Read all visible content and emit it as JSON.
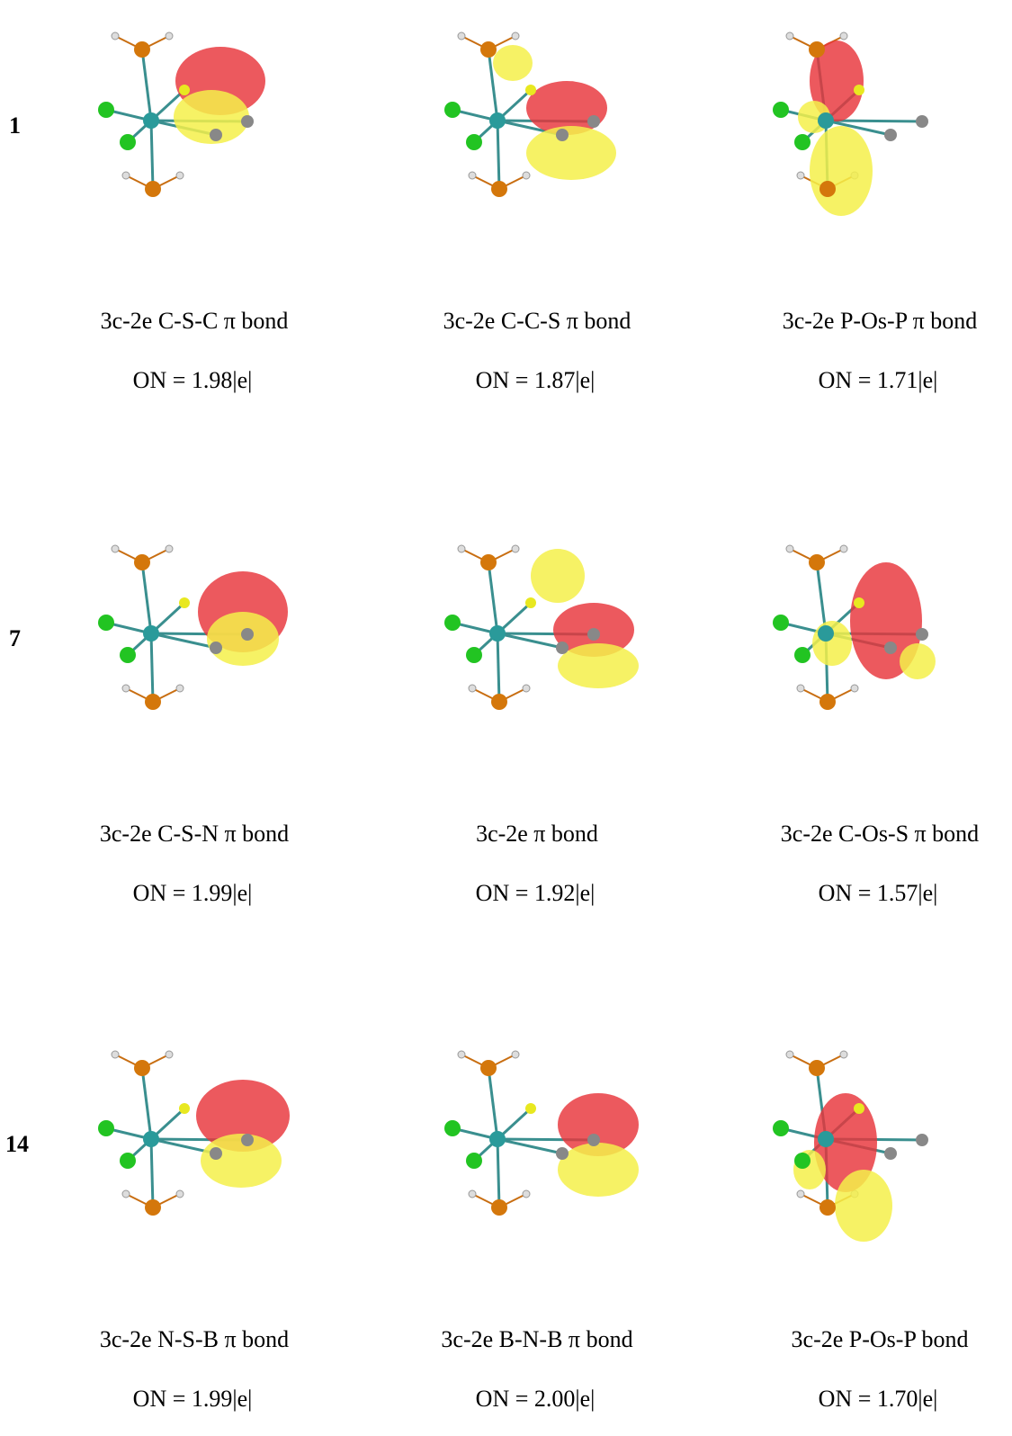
{
  "figure": {
    "rows": [
      {
        "label": "1",
        "panels": [
          {
            "caption": "3c-2e C-S-C π bond",
            "on": "ON = 1.98|e|"
          },
          {
            "caption": "3c-2e C-C-S π bond",
            "on": "ON = 1.87|e|"
          },
          {
            "caption": "3c-2e P-Os-P π bond",
            "on": "ON = 1.71|e|"
          }
        ]
      },
      {
        "label": "7",
        "panels": [
          {
            "caption": "3c-2e C-S-N π bond",
            "on": "ON = 1.99|e|"
          },
          {
            "caption": "3c-2e π bond",
            "on": "ON = 1.92|e|"
          },
          {
            "caption": "3c-2e C-Os-S π bond",
            "on": "ON = 1.57|e|"
          }
        ]
      },
      {
        "label": "14",
        "panels": [
          {
            "caption": "3c-2e N-S-B π bond",
            "on": "ON = 1.99|e|"
          },
          {
            "caption": "3c-2e B-N-B π bond",
            "on": "ON = 2.00|e|"
          },
          {
            "caption": "3c-2e P-Os-P bond",
            "on": "ON = 1.70|e|"
          }
        ]
      }
    ]
  }
}
